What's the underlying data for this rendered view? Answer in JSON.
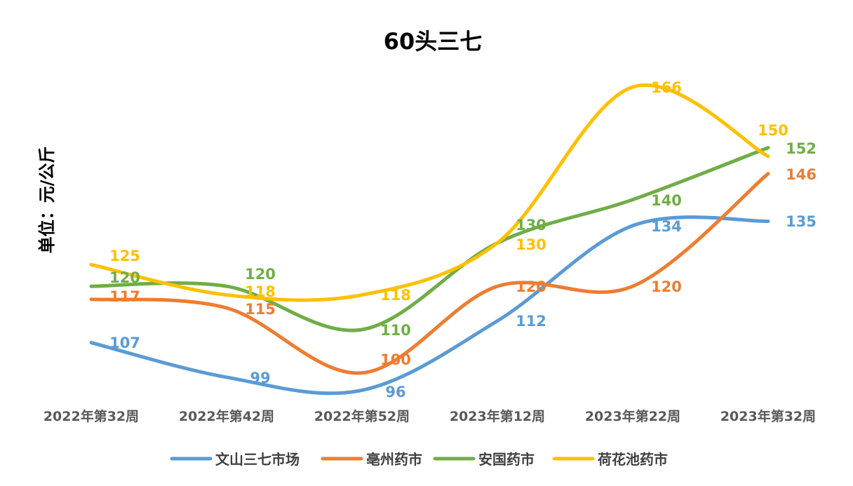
{
  "chart_data": {
    "type": "line",
    "title": "60头三七",
    "xlabel": "",
    "ylabel": "单位：元/公斤",
    "categories": [
      "2022年第32周",
      "2022年第42周",
      "2022年第52周",
      "2023年第12周",
      "2023年第22周",
      "2023年第32周"
    ],
    "ylim": [
      93,
      172
    ],
    "grid": false,
    "smooth": true,
    "legend_position": "bottom",
    "series": [
      {
        "name": "文山三七市场",
        "color": "#5B9BD5",
        "values": [
          107,
          99,
          96,
          112,
          134,
          135
        ]
      },
      {
        "name": "亳州药市",
        "color": "#ED7D31",
        "values": [
          117,
          115,
          100,
          120,
          120,
          146
        ]
      },
      {
        "name": "安国药市",
        "color": "#70AD47",
        "values": [
          120,
          120,
          110,
          130,
          140,
          152
        ]
      },
      {
        "name": "荷花池药市",
        "color": "#FFC000",
        "values": [
          125,
          118,
          118,
          130,
          166,
          150
        ]
      }
    ]
  }
}
